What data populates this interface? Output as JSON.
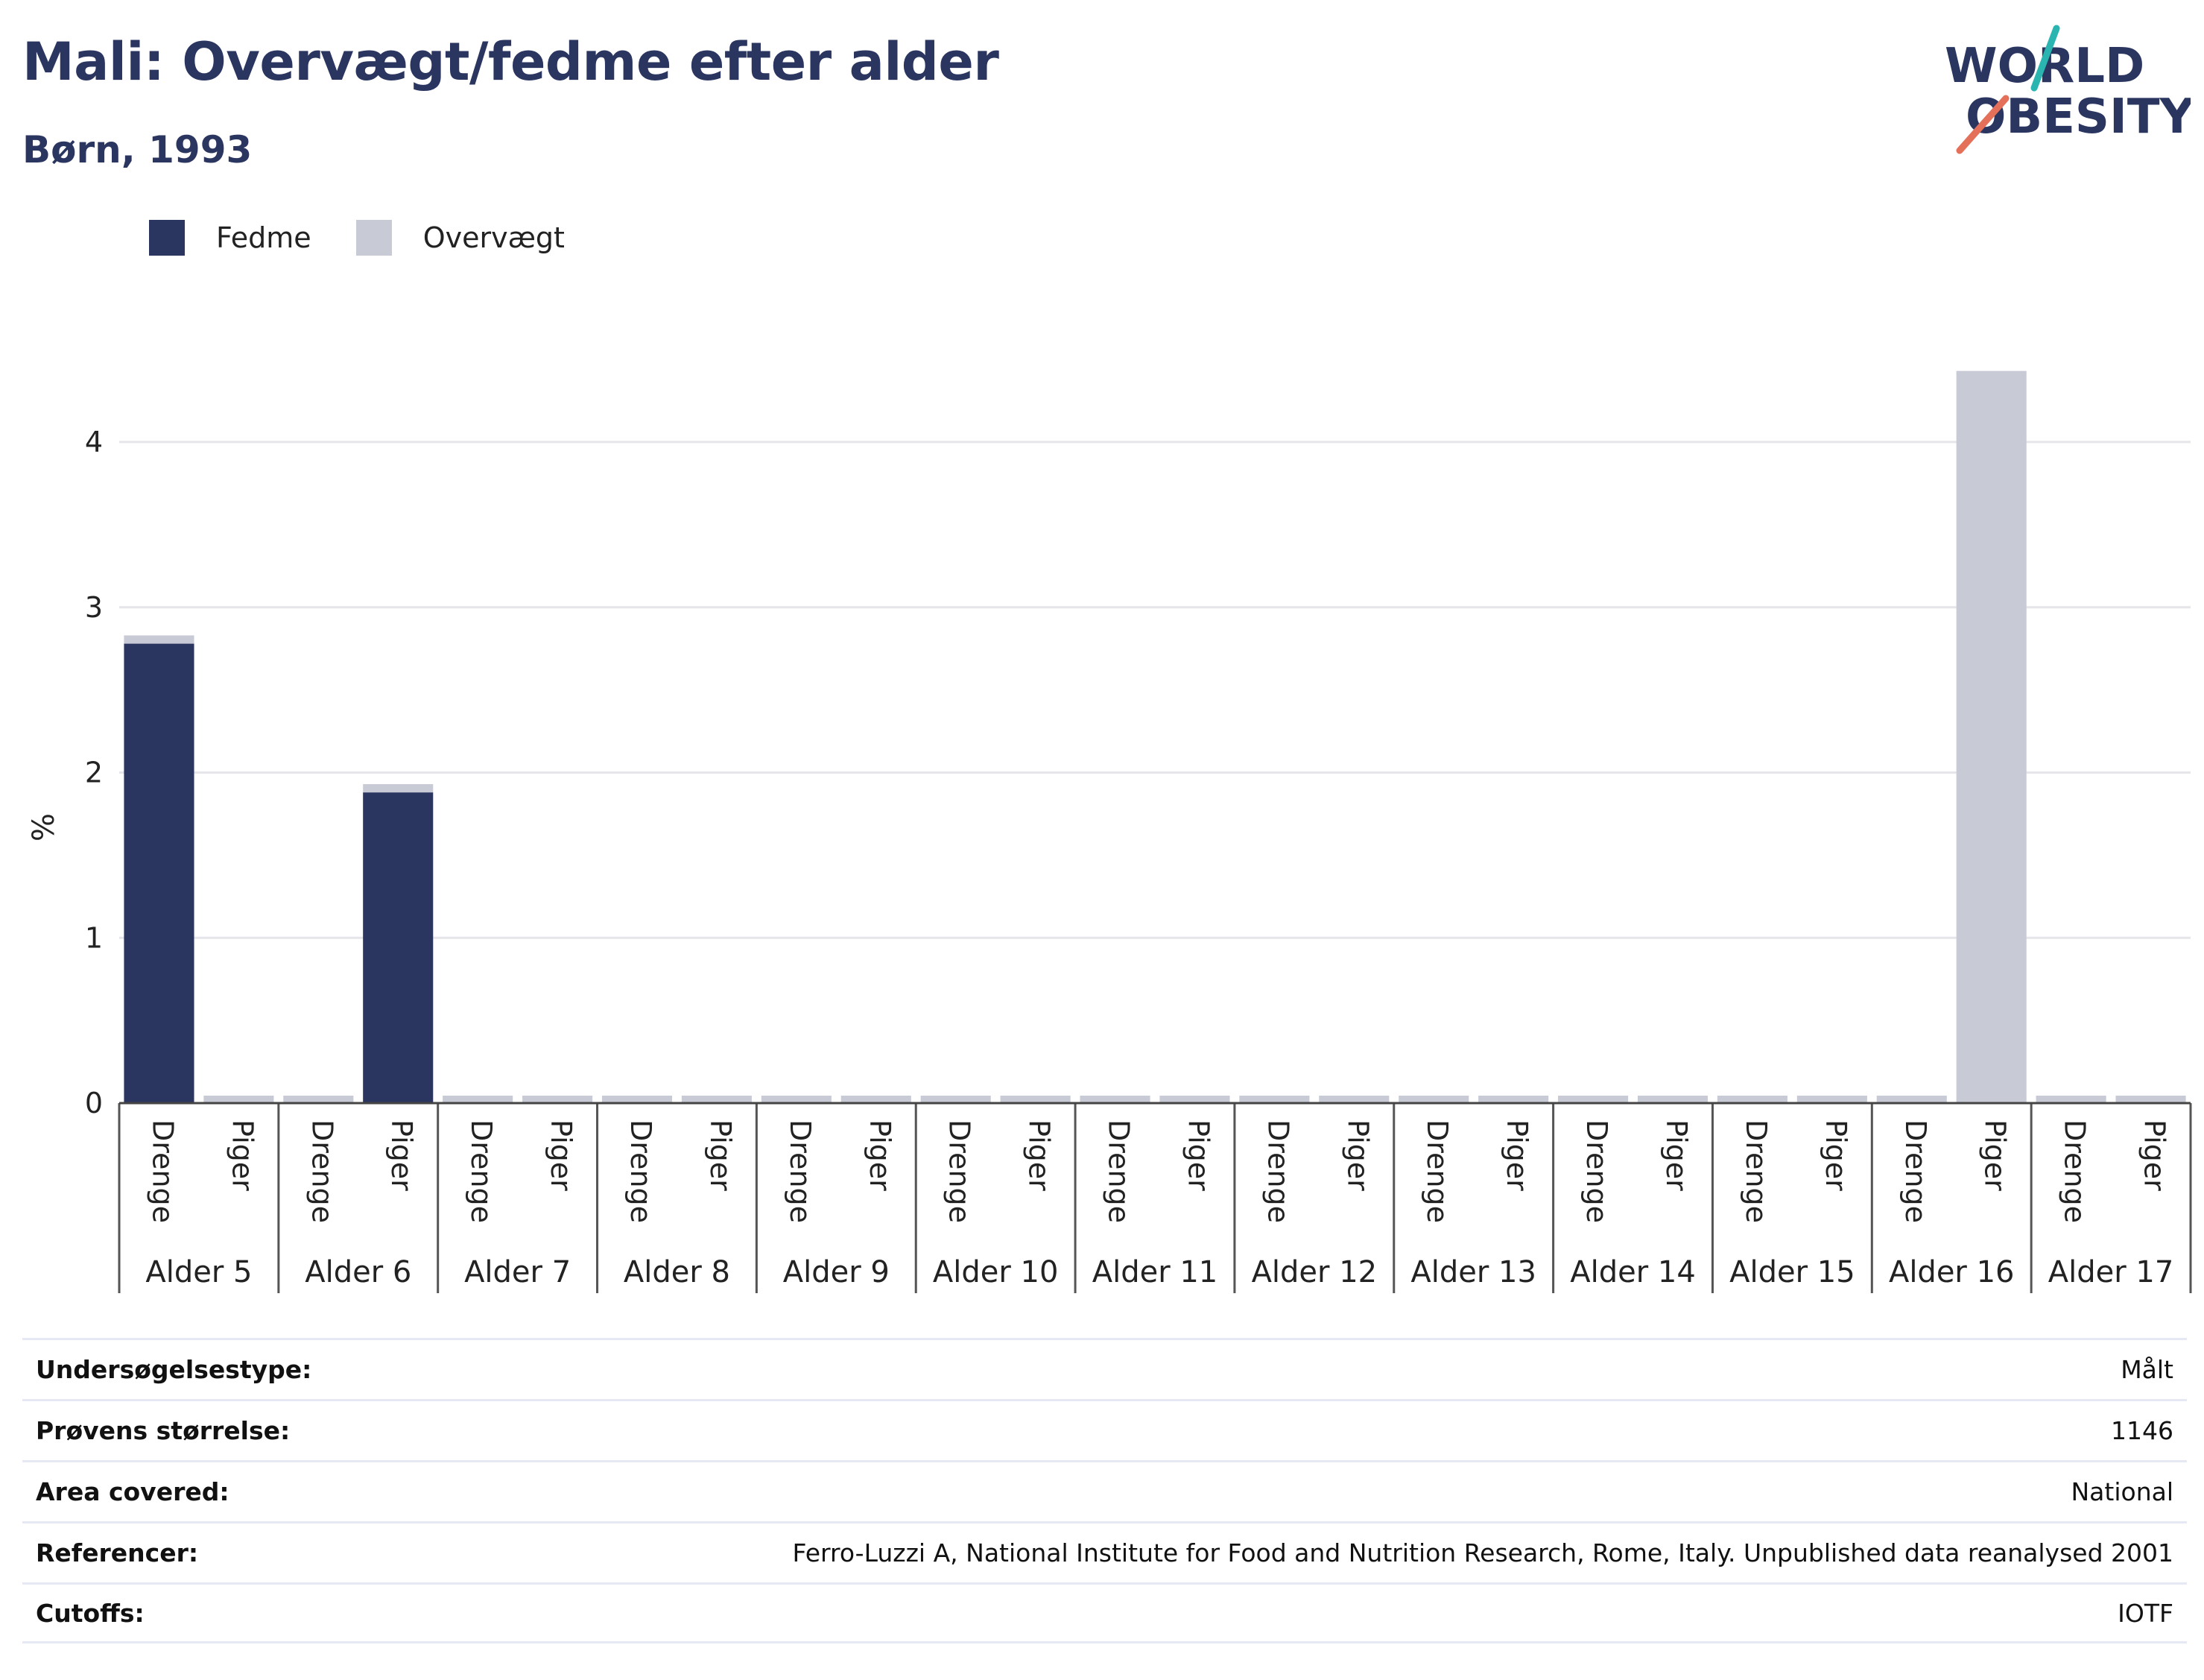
{
  "header": {
    "title": "Mali: Overvægt/fedme efter alder",
    "subtitle": "Børn, 1993"
  },
  "logo": {
    "line1": "WORLD",
    "line2": "OBESITY"
  },
  "legend": [
    {
      "label": "Fedme",
      "color": "#2a3560"
    },
    {
      "label": "Overvægt",
      "color": "#c8cad6"
    }
  ],
  "chart_data": {
    "type": "bar",
    "stacked": true,
    "ylabel": "%",
    "ylim": [
      0,
      4.6
    ],
    "yticks": [
      0,
      1,
      2,
      3,
      4
    ],
    "grid": true,
    "groups": [
      "Alder 5",
      "Alder 6",
      "Alder 7",
      "Alder 8",
      "Alder 9",
      "Alder 10",
      "Alder 11",
      "Alder 12",
      "Alder 13",
      "Alder 14",
      "Alder 15",
      "Alder 16",
      "Alder 17"
    ],
    "subcategories": [
      "Drenge",
      "Piger"
    ],
    "series": [
      {
        "name": "Fedme",
        "color": "#2a3560",
        "values": [
          [
            2.78,
            0
          ],
          [
            0,
            1.88
          ],
          [
            0,
            0
          ],
          [
            0,
            0
          ],
          [
            0,
            0
          ],
          [
            0,
            0
          ],
          [
            0,
            0
          ],
          [
            0,
            0
          ],
          [
            0,
            0
          ],
          [
            0,
            0
          ],
          [
            0,
            0
          ],
          [
            0,
            0
          ],
          [
            0,
            0
          ]
        ]
      },
      {
        "name": "Overvægt",
        "color": "#c8cad6",
        "values": [
          [
            0.05,
            0
          ],
          [
            0,
            0.05
          ],
          [
            0,
            0
          ],
          [
            0,
            0
          ],
          [
            0,
            0
          ],
          [
            0,
            0
          ],
          [
            0,
            0
          ],
          [
            0,
            0
          ],
          [
            0,
            0
          ],
          [
            0,
            0
          ],
          [
            0,
            0
          ],
          [
            0,
            4.43
          ],
          [
            0,
            0
          ]
        ]
      }
    ]
  },
  "info": [
    {
      "key": "Undersøgelsestype:",
      "value": "Målt"
    },
    {
      "key": "Prøvens størrelse:",
      "value": "1146"
    },
    {
      "key": "Area covered:",
      "value": "National"
    },
    {
      "key": "Referencer:",
      "value": "Ferro-Luzzi A, National Institute for Food and Nutrition Research, Rome, Italy. Unpublished data reanalysed 2001"
    },
    {
      "key": "Cutoffs:",
      "value": "IOTF"
    }
  ]
}
